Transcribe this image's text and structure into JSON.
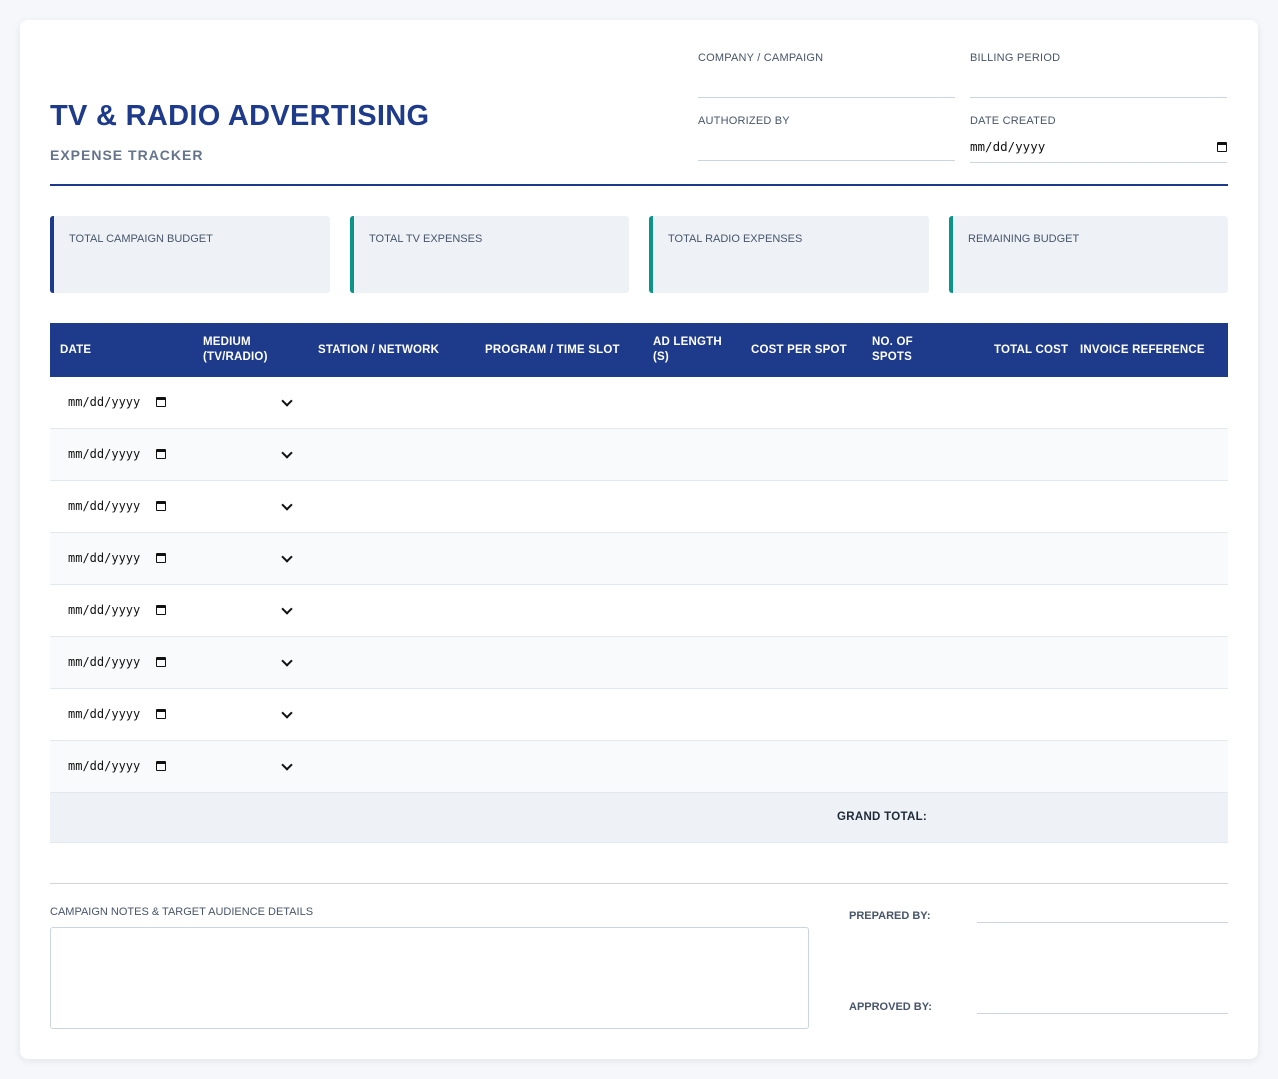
{
  "header": {
    "title": "TV & RADIO ADVERTISING",
    "subtitle": "EXPENSE TRACKER",
    "fields": {
      "company_campaign": "COMPANY / CAMPAIGN",
      "billing_period": "BILLING PERIOD",
      "authorized_by": "AUTHORIZED BY",
      "date_created": "DATE CREATED",
      "date_placeholder": "mm/dd/yyyy"
    }
  },
  "summary_cards": [
    {
      "label": "TOTAL CAMPAIGN BUDGET",
      "accent": "#1e3a8a"
    },
    {
      "label": "TOTAL TV EXPENSES",
      "accent": "#0d9488"
    },
    {
      "label": "TOTAL RADIO EXPENSES",
      "accent": "#0d9488"
    },
    {
      "label": "REMAINING BUDGET",
      "accent": "#0d9488"
    }
  ],
  "table": {
    "columns": [
      "DATE",
      "MEDIUM (TV/RADIO)",
      "STATION / NETWORK",
      "PROGRAM / TIME SLOT",
      "AD LENGTH (S)",
      "COST PER SPOT",
      "NO. OF SPOTS",
      "TOTAL COST",
      "INVOICE REFERENCE"
    ],
    "rows": [
      {
        "date": "mm/dd/yyyy"
      },
      {
        "date": "mm/dd/yyyy"
      },
      {
        "date": "mm/dd/yyyy"
      },
      {
        "date": "mm/dd/yyyy"
      },
      {
        "date": "mm/dd/yyyy"
      },
      {
        "date": "mm/dd/yyyy"
      },
      {
        "date": "mm/dd/yyyy"
      },
      {
        "date": "mm/dd/yyyy"
      }
    ],
    "grand_total_label": "GRAND TOTAL:"
  },
  "footer": {
    "notes_label": "CAMPAIGN NOTES & TARGET AUDIENCE DETAILS",
    "prepared_by": "PREPARED BY:",
    "approved_by": "APPROVED BY:"
  },
  "colors": {
    "primary": "#1e3a8a",
    "accent": "#0d9488",
    "card_bg": "#eef2f7"
  }
}
